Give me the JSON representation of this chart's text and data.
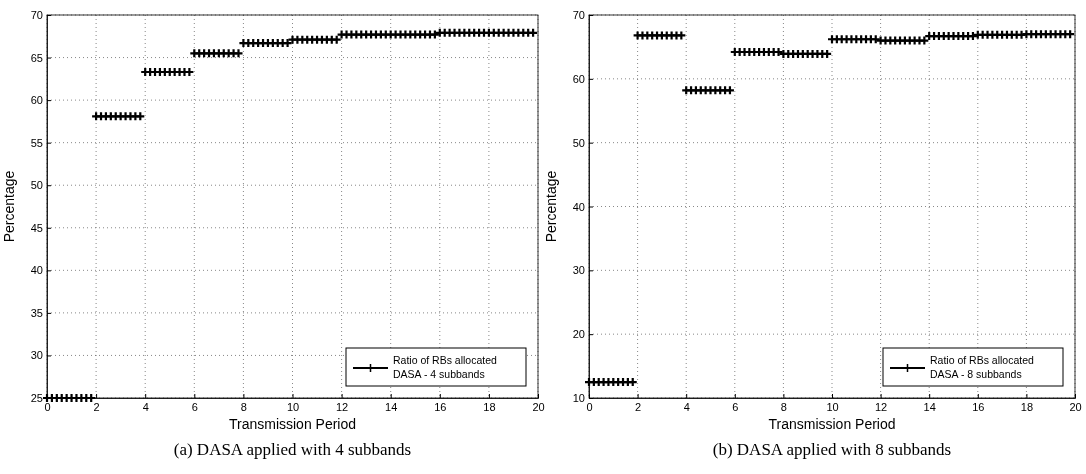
{
  "chart_data": [
    {
      "type": "scatter",
      "title": "(a)  DASA applied with 4 subbands",
      "xlabel": "Transmission Period",
      "ylabel": "Percentage",
      "xlim": [
        0,
        20
      ],
      "xticks": [
        0,
        2,
        4,
        6,
        8,
        10,
        12,
        14,
        16,
        18,
        20
      ],
      "ylim": [
        25,
        70
      ],
      "yticks": [
        25,
        30,
        35,
        40,
        45,
        50,
        55,
        60,
        65,
        70
      ],
      "grid": true,
      "legend": "bottom right",
      "marker": "cross",
      "x": [
        0,
        0.2,
        0.4,
        0.6,
        0.8,
        1,
        1.2,
        1.4,
        1.6,
        1.8,
        2,
        2.2,
        2.4,
        2.6,
        2.8,
        3,
        3.2,
        3.4,
        3.6,
        3.8,
        4,
        4.2,
        4.4,
        4.6,
        4.8,
        5,
        5.2,
        5.4,
        5.6,
        5.8,
        6,
        6.2,
        6.4,
        6.6,
        6.8,
        7,
        7.2,
        7.4,
        7.6,
        7.8,
        8,
        8.2,
        8.4,
        8.6,
        8.8,
        9,
        9.2,
        9.4,
        9.6,
        9.8,
        10,
        10.2,
        10.4,
        10.6,
        10.8,
        11,
        11.2,
        11.4,
        11.6,
        11.8,
        12,
        12.2,
        12.4,
        12.6,
        12.8,
        13,
        13.2,
        13.4,
        13.6,
        13.8,
        14,
        14.2,
        14.4,
        14.6,
        14.8,
        15,
        15.2,
        15.4,
        15.6,
        15.8,
        16,
        16.2,
        16.4,
        16.6,
        16.8,
        17,
        17.2,
        17.4,
        17.6,
        17.8,
        18,
        18.2,
        18.4,
        18.6,
        18.8,
        19,
        19.2,
        19.4,
        19.6,
        19.8
      ],
      "series": [
        {
          "name": "Ratio of RBs allocated\nDASA - 4 subbands",
          "color": "#000000",
          "values": [
            25,
            25,
            25,
            25,
            25,
            25,
            25,
            25,
            25,
            25,
            58.1,
            58.1,
            58.1,
            58.1,
            58.1,
            58.1,
            58.1,
            58.1,
            58.1,
            58.1,
            63.3,
            63.3,
            63.3,
            63.3,
            63.3,
            63.3,
            63.3,
            63.3,
            63.3,
            63.3,
            65.5,
            65.5,
            65.5,
            65.5,
            65.5,
            65.5,
            65.5,
            65.5,
            65.5,
            65.5,
            66.7,
            66.7,
            66.7,
            66.7,
            66.7,
            66.7,
            66.7,
            66.7,
            66.7,
            66.7,
            67.1,
            67.1,
            67.1,
            67.1,
            67.1,
            67.1,
            67.1,
            67.1,
            67.1,
            67.1,
            67.7,
            67.7,
            67.7,
            67.7,
            67.7,
            67.7,
            67.7,
            67.7,
            67.7,
            67.7,
            67.7,
            67.7,
            67.7,
            67.7,
            67.7,
            67.7,
            67.7,
            67.7,
            67.7,
            67.7,
            67.9,
            67.9,
            67.9,
            67.9,
            67.9,
            67.9,
            67.9,
            67.9,
            67.9,
            67.9,
            67.9,
            67.9,
            67.9,
            67.9,
            67.9,
            67.9,
            67.9,
            67.9,
            67.9,
            67.9
          ]
        }
      ]
    },
    {
      "type": "scatter",
      "title": "(b)  DASA applied with 8 subbands",
      "xlabel": "Transmission Period",
      "ylabel": "Percentage",
      "xlim": [
        0,
        20
      ],
      "xticks": [
        0,
        2,
        4,
        6,
        8,
        10,
        12,
        14,
        16,
        18,
        20
      ],
      "ylim": [
        10,
        70
      ],
      "yticks": [
        10,
        20,
        30,
        40,
        50,
        60,
        70
      ],
      "grid": true,
      "legend": "bottom right",
      "marker": "cross",
      "x": [
        0,
        0.2,
        0.4,
        0.6,
        0.8,
        1,
        1.2,
        1.4,
        1.6,
        1.8,
        2,
        2.2,
        2.4,
        2.6,
        2.8,
        3,
        3.2,
        3.4,
        3.6,
        3.8,
        4,
        4.2,
        4.4,
        4.6,
        4.8,
        5,
        5.2,
        5.4,
        5.6,
        5.8,
        6,
        6.2,
        6.4,
        6.6,
        6.8,
        7,
        7.2,
        7.4,
        7.6,
        7.8,
        8,
        8.2,
        8.4,
        8.6,
        8.8,
        9,
        9.2,
        9.4,
        9.6,
        9.8,
        10,
        10.2,
        10.4,
        10.6,
        10.8,
        11,
        11.2,
        11.4,
        11.6,
        11.8,
        12,
        12.2,
        12.4,
        12.6,
        12.8,
        13,
        13.2,
        13.4,
        13.6,
        13.8,
        14,
        14.2,
        14.4,
        14.6,
        14.8,
        15,
        15.2,
        15.4,
        15.6,
        15.8,
        16,
        16.2,
        16.4,
        16.6,
        16.8,
        17,
        17.2,
        17.4,
        17.6,
        17.8,
        18,
        18.2,
        18.4,
        18.6,
        18.8,
        19,
        19.2,
        19.4,
        19.6,
        19.8
      ],
      "series": [
        {
          "name": "Ratio of RBs allocated\nDASA - 8 subbands",
          "color": "#000000",
          "values": [
            12.5,
            12.5,
            12.5,
            12.5,
            12.5,
            12.5,
            12.5,
            12.5,
            12.5,
            12.5,
            66.8,
            66.8,
            66.8,
            66.8,
            66.8,
            66.8,
            66.8,
            66.8,
            66.8,
            66.8,
            58.2,
            58.2,
            58.2,
            58.2,
            58.2,
            58.2,
            58.2,
            58.2,
            58.2,
            58.2,
            64.2,
            64.2,
            64.2,
            64.2,
            64.2,
            64.2,
            64.2,
            64.2,
            64.2,
            64.2,
            63.9,
            63.9,
            63.9,
            63.9,
            63.9,
            63.9,
            63.9,
            63.9,
            63.9,
            63.9,
            66.2,
            66.2,
            66.2,
            66.2,
            66.2,
            66.2,
            66.2,
            66.2,
            66.2,
            66.2,
            66,
            66,
            66,
            66,
            66,
            66,
            66,
            66,
            66,
            66,
            66.7,
            66.7,
            66.7,
            66.7,
            66.7,
            66.7,
            66.7,
            66.7,
            66.7,
            66.7,
            66.9,
            66.9,
            66.9,
            66.9,
            66.9,
            66.9,
            66.9,
            66.9,
            66.9,
            66.9,
            67,
            67,
            67,
            67,
            67,
            67,
            67,
            67,
            67,
            67
          ]
        }
      ]
    }
  ]
}
